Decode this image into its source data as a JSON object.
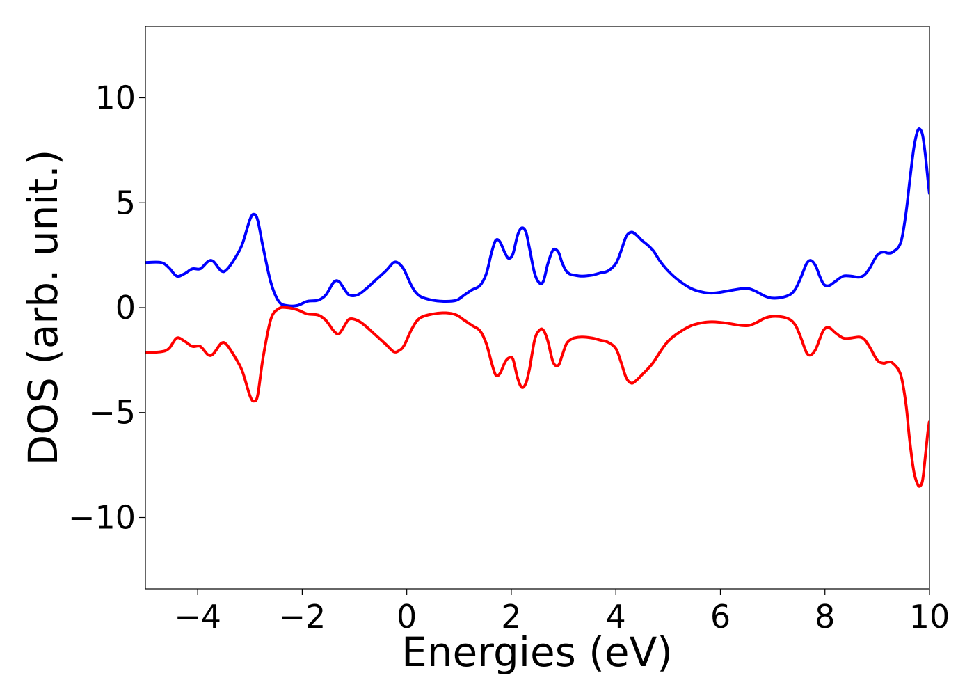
{
  "chart_data": {
    "type": "line",
    "title": "",
    "xlabel": "Energies (eV)",
    "ylabel": "DOS (arb. unit.)",
    "xlim": [
      -5,
      10
    ],
    "ylim": [
      -13.4,
      13.4
    ],
    "xticks": [
      -4,
      -2,
      0,
      2,
      4,
      6,
      8,
      10
    ],
    "xtick_labels": [
      "−4",
      "−2",
      "0",
      "2",
      "4",
      "6",
      "8",
      "10"
    ],
    "yticks": [
      -10,
      -5,
      0,
      5,
      10
    ],
    "ytick_labels": [
      "−10",
      "−5",
      "0",
      "5",
      "10"
    ],
    "grid": false,
    "legend": "none",
    "series": [
      {
        "color": "#0000ff",
        "x": [
          -5.0,
          -4.7,
          -4.55,
          -4.4,
          -4.25,
          -4.1,
          -3.95,
          -3.8,
          -3.7,
          -3.55,
          -3.45,
          -3.3,
          -3.15,
          -3.0,
          -2.92,
          -2.85,
          -2.75,
          -2.6,
          -2.45,
          -2.3,
          -2.1,
          -1.9,
          -1.7,
          -1.55,
          -1.4,
          -1.3,
          -1.2,
          -1.1,
          -0.95,
          -0.8,
          -0.6,
          -0.4,
          -0.25,
          -0.15,
          -0.05,
          0.1,
          0.25,
          0.5,
          0.75,
          0.95,
          1.1,
          1.25,
          1.4,
          1.52,
          1.62,
          1.7,
          1.78,
          1.88,
          1.95,
          2.03,
          2.12,
          2.2,
          2.28,
          2.35,
          2.45,
          2.55,
          2.62,
          2.7,
          2.8,
          2.9,
          2.97,
          3.05,
          3.12,
          3.2,
          3.35,
          3.55,
          3.7,
          3.85,
          4.0,
          4.1,
          4.2,
          4.3,
          4.4,
          4.5,
          4.6,
          4.72,
          4.85,
          5.0,
          5.2,
          5.45,
          5.7,
          5.9,
          6.15,
          6.4,
          6.55,
          6.7,
          6.85,
          7.0,
          7.2,
          7.35,
          7.45,
          7.55,
          7.65,
          7.73,
          7.82,
          7.9,
          7.98,
          8.08,
          8.2,
          8.35,
          8.5,
          8.65,
          8.75,
          8.85,
          9.0,
          9.12,
          9.2,
          9.3,
          9.45,
          9.55,
          9.62,
          9.7,
          9.77,
          9.82,
          9.87,
          9.92,
          9.97,
          10.0
        ],
        "y": [
          2.15,
          2.15,
          1.9,
          1.5,
          1.62,
          1.85,
          1.85,
          2.2,
          2.2,
          1.75,
          1.8,
          2.3,
          3.0,
          4.2,
          4.45,
          4.15,
          2.9,
          1.2,
          0.3,
          0.1,
          0.1,
          0.3,
          0.35,
          0.6,
          1.2,
          1.25,
          0.9,
          0.6,
          0.6,
          0.85,
          1.3,
          1.75,
          2.15,
          2.1,
          1.8,
          1.0,
          0.55,
          0.35,
          0.3,
          0.35,
          0.6,
          0.85,
          1.05,
          1.6,
          2.6,
          3.2,
          3.15,
          2.6,
          2.35,
          2.55,
          3.45,
          3.8,
          3.6,
          2.8,
          1.6,
          1.15,
          1.3,
          2.1,
          2.75,
          2.65,
          2.15,
          1.75,
          1.6,
          1.55,
          1.5,
          1.55,
          1.65,
          1.75,
          2.1,
          2.7,
          3.4,
          3.6,
          3.45,
          3.2,
          3.0,
          2.7,
          2.2,
          1.75,
          1.3,
          0.9,
          0.72,
          0.7,
          0.8,
          0.9,
          0.9,
          0.75,
          0.55,
          0.45,
          0.5,
          0.65,
          0.95,
          1.5,
          2.1,
          2.25,
          2.0,
          1.5,
          1.1,
          1.05,
          1.25,
          1.5,
          1.5,
          1.45,
          1.55,
          1.85,
          2.5,
          2.65,
          2.6,
          2.65,
          3.1,
          4.5,
          6.0,
          7.6,
          8.4,
          8.5,
          8.2,
          7.3,
          6.1,
          5.4
        ]
      },
      {
        "color": "#ff0000",
        "x": [
          -5.0,
          -4.7,
          -4.55,
          -4.4,
          -4.25,
          -4.1,
          -3.95,
          -3.8,
          -3.7,
          -3.55,
          -3.45,
          -3.3,
          -3.15,
          -3.0,
          -2.92,
          -2.85,
          -2.75,
          -2.6,
          -2.45,
          -2.3,
          -2.1,
          -1.9,
          -1.7,
          -1.55,
          -1.4,
          -1.3,
          -1.2,
          -1.1,
          -0.95,
          -0.8,
          -0.6,
          -0.4,
          -0.25,
          -0.15,
          -0.05,
          0.1,
          0.25,
          0.5,
          0.75,
          0.95,
          1.1,
          1.25,
          1.4,
          1.52,
          1.62,
          1.7,
          1.78,
          1.88,
          1.95,
          2.03,
          2.12,
          2.2,
          2.28,
          2.35,
          2.45,
          2.55,
          2.62,
          2.7,
          2.8,
          2.9,
          2.97,
          3.05,
          3.12,
          3.2,
          3.35,
          3.55,
          3.7,
          3.85,
          4.0,
          4.1,
          4.2,
          4.3,
          4.4,
          4.5,
          4.6,
          4.72,
          4.85,
          5.0,
          5.2,
          5.45,
          5.7,
          5.9,
          6.15,
          6.4,
          6.55,
          6.7,
          6.85,
          7.0,
          7.2,
          7.35,
          7.45,
          7.55,
          7.65,
          7.73,
          7.82,
          7.9,
          7.98,
          8.08,
          8.2,
          8.35,
          8.5,
          8.65,
          8.75,
          8.85,
          9.0,
          9.12,
          9.2,
          9.3,
          9.45,
          9.55,
          9.62,
          9.7,
          9.77,
          9.82,
          9.87,
          9.92,
          9.97,
          10.0
        ],
        "y": [
          -2.15,
          -2.1,
          -1.95,
          -1.45,
          -1.6,
          -1.85,
          -1.85,
          -2.25,
          -2.2,
          -1.7,
          -1.75,
          -2.3,
          -3.0,
          -4.2,
          -4.45,
          -4.15,
          -2.4,
          -0.55,
          -0.05,
          0.0,
          -0.1,
          -0.3,
          -0.35,
          -0.6,
          -1.1,
          -1.25,
          -0.9,
          -0.55,
          -0.6,
          -0.85,
          -1.3,
          -1.75,
          -2.1,
          -2.05,
          -1.8,
          -1.0,
          -0.5,
          -0.3,
          -0.25,
          -0.35,
          -0.6,
          -0.85,
          -1.1,
          -1.7,
          -2.6,
          -3.2,
          -3.15,
          -2.6,
          -2.4,
          -2.45,
          -3.35,
          -3.8,
          -3.6,
          -2.9,
          -1.5,
          -1.05,
          -1.1,
          -1.6,
          -2.6,
          -2.75,
          -2.3,
          -1.75,
          -1.55,
          -1.45,
          -1.4,
          -1.45,
          -1.55,
          -1.65,
          -1.95,
          -2.6,
          -3.35,
          -3.6,
          -3.45,
          -3.2,
          -2.95,
          -2.6,
          -2.1,
          -1.6,
          -1.2,
          -0.85,
          -0.7,
          -0.68,
          -0.75,
          -0.85,
          -0.85,
          -0.7,
          -0.5,
          -0.42,
          -0.45,
          -0.6,
          -0.9,
          -1.5,
          -2.15,
          -2.25,
          -2.0,
          -1.5,
          -1.05,
          -0.95,
          -1.2,
          -1.45,
          -1.45,
          -1.4,
          -1.5,
          -1.85,
          -2.5,
          -2.65,
          -2.6,
          -2.65,
          -3.2,
          -4.6,
          -6.3,
          -7.8,
          -8.4,
          -8.5,
          -8.2,
          -7.1,
          -5.9,
          -5.4
        ]
      }
    ]
  }
}
